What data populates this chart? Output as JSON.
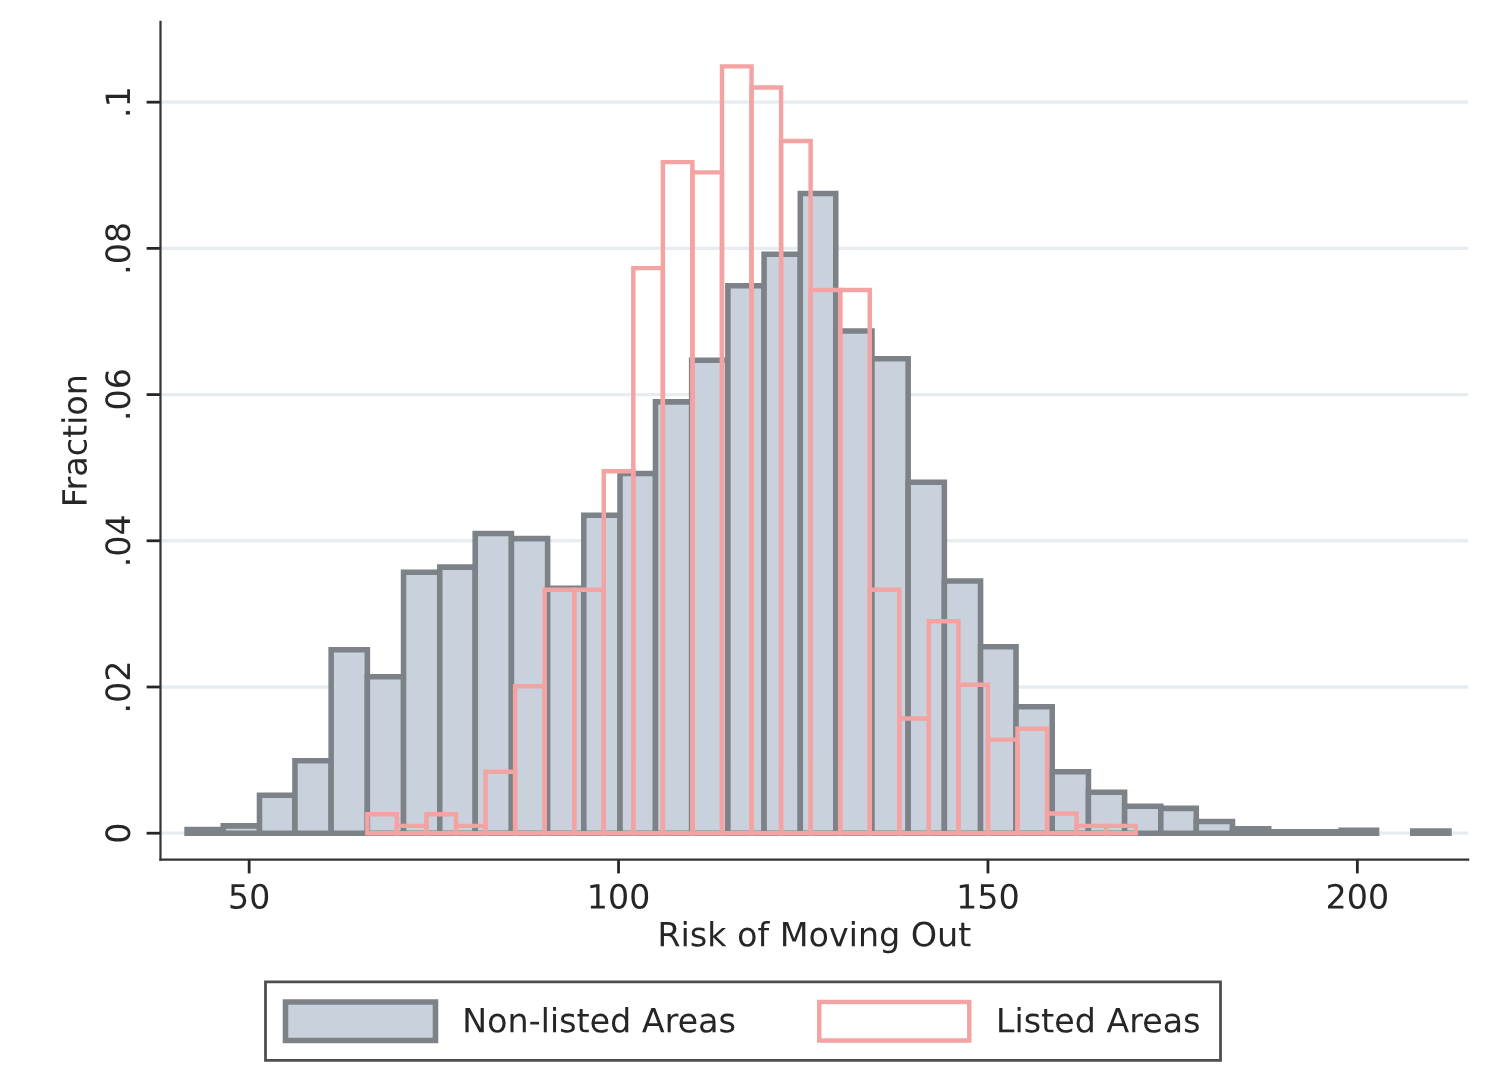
{
  "chart_data": [
    {
      "type": "histogram",
      "xlabel": "Risk of Moving Out",
      "ylabel": "Fraction",
      "xlim": [
        38,
        215
      ],
      "xticks": [
        50,
        100,
        150,
        200
      ],
      "ylim": [
        -0.0036,
        0.111
      ],
      "yticks": [
        {
          "value": 0,
          "label": "0"
        },
        {
          "value": 0.02,
          "label": ".02"
        },
        {
          "value": 0.04,
          "label": ".04"
        },
        {
          "value": 0.06,
          "label": ".06"
        },
        {
          "value": 0.08,
          "label": ".08"
        },
        {
          "value": 0.1,
          "label": ".1"
        }
      ],
      "grid": "y",
      "legend": "bottom",
      "bins": [
        41.6,
        46.5,
        51.4,
        56.2,
        61.1,
        66.0,
        70.9,
        75.8,
        80.6,
        85.5,
        90.4,
        95.3,
        100.2,
        105.0,
        109.9,
        114.8,
        119.7,
        124.6,
        129.4,
        134.3,
        139.2,
        144.1,
        149.0,
        153.8,
        158.7,
        163.6,
        168.5,
        173.4,
        178.2,
        183.1,
        188.0,
        192.9,
        197.8,
        202.6,
        207.5,
        212.4
      ],
      "series": [
        {
          "name": "Non-listed Areas",
          "color": "#c9d2dc",
          "values": [
            0.0005,
            0.001,
            0.0052,
            0.0099,
            0.0251,
            0.0214,
            0.0357,
            0.0364,
            0.041,
            0.0403,
            0.0335,
            0.0435,
            0.0492,
            0.059,
            0.0647,
            0.0749,
            0.0792,
            0.0875,
            0.0687,
            0.0649,
            0.048,
            0.0345,
            0.0255,
            0.0173,
            0.0084,
            0.0056,
            0.0037,
            0.0034,
            0.0016,
            0.0006,
            0.0002,
            0.0002,
            0.0004,
            null,
            0.0003
          ]
        }
      ]
    },
    {
      "type": "histogram",
      "xlim": [
        38,
        215
      ],
      "ylim": [
        -0.0036,
        0.111
      ],
      "legend": "bottom",
      "bins": [
        66,
        70,
        74,
        78,
        82,
        86,
        90,
        94,
        98,
        102,
        106,
        110,
        114,
        118,
        122,
        126,
        130,
        134,
        138,
        142,
        146,
        150,
        154,
        158,
        162,
        166,
        170
      ],
      "series": [
        {
          "name": "Listed Areas",
          "color": "#f4a3a3",
          "values": [
            0.0026,
            0.001,
            0.0026,
            0.001,
            0.0084,
            0.0201,
            0.0333,
            0.0333,
            0.0495,
            0.0773,
            0.0918,
            0.0904,
            0.1049,
            0.102,
            0.0947,
            0.0743,
            0.0743,
            0.0333,
            0.0157,
            0.029,
            0.0203,
            0.0128,
            0.0143,
            0.0027,
            0.001,
            0.001
          ]
        }
      ]
    }
  ]
}
